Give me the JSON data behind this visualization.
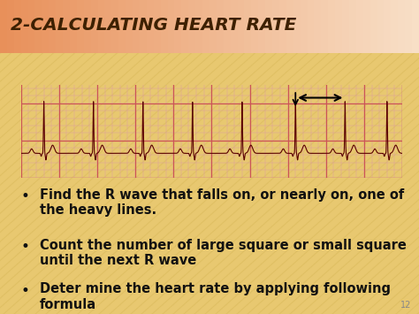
{
  "title": "2-CALCULATING HEART RATE",
  "title_color": "#3d2000",
  "title_fontsize": 14.5,
  "bg_top_color": "#e8c870",
  "bg_bottom_color": "#d4b84a",
  "title_bar_left_color": "#e8905a",
  "title_bar_right_color": "#f5d5b0",
  "ecg_strip_bg": "#f7d8d8",
  "ecg_line_color": "#5a0000",
  "grid_minor_color": "#dda0a0",
  "grid_major_color": "#cc5555",
  "bullet_points": [
    "Find the R wave that falls on, or nearly on, one of\nthe heavy lines.",
    "Count the number of large square or small square\nuntil the next R wave",
    "Deter mine the heart rate by applying following\nformula"
  ],
  "bullet_color": "#111111",
  "bullet_fontsize": 10.5,
  "slide_number": "12",
  "stripe_color": "#c8a840",
  "stripe_alpha": 0.25
}
